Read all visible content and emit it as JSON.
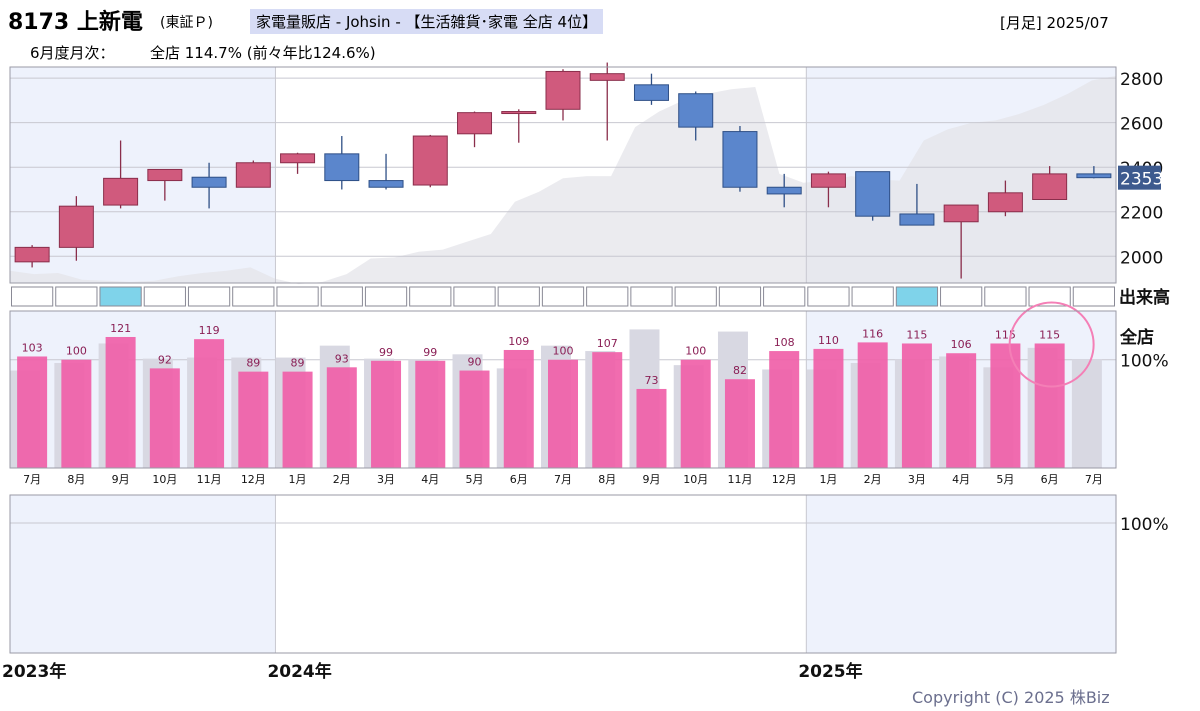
{
  "header": {
    "ticker": "8173 上新電",
    "market": "(東証Ｐ)",
    "sector": "家電量販店 - Johsin - 【生活雑貨･家電 全店 4位】",
    "period": "[月足] 2025/07",
    "monthly_label": "6月度月次：",
    "monthly_value": "全店 114.7% (前々年比124.6%)"
  },
  "copyright": "Copyright (C) 2025 株Biz",
  "colors": {
    "up": "#d05a7d",
    "down": "#5b86cc",
    "sales_bar": "#f060a8",
    "prev_bar": "#d8d8e2",
    "shade": "#eef2fc",
    "price_tag": "#3d5a8e"
  },
  "chart_data": [
    {
      "type": "candlestick",
      "ylim": [
        1880,
        2850
      ],
      "yticks": [
        "2800",
        "2600",
        "2400",
        "2200",
        "2000"
      ],
      "last_price": "2353",
      "volume_label": "出来高",
      "years": [
        "2023年",
        "2024年",
        "2025年"
      ],
      "categories": [
        "7月",
        "8月",
        "9月",
        "10月",
        "11月",
        "12月",
        "1月",
        "2月",
        "3月",
        "4月",
        "5月",
        "6月",
        "7月",
        "8月",
        "9月",
        "10月",
        "11月",
        "12月",
        "1月",
        "2月",
        "3月",
        "4月",
        "5月",
        "6月",
        "7月"
      ],
      "ohlc": [
        [
          1975,
          2050,
          1950,
          2040
        ],
        [
          2040,
          2270,
          1980,
          2225
        ],
        [
          2230,
          2520,
          2215,
          2350
        ],
        [
          2340,
          2390,
          2250,
          2390
        ],
        [
          2355,
          2420,
          2215,
          2310
        ],
        [
          2310,
          2430,
          2310,
          2420
        ],
        [
          2420,
          2465,
          2370,
          2460
        ],
        [
          2460,
          2540,
          2300,
          2340
        ],
        [
          2340,
          2460,
          2300,
          2310
        ],
        [
          2320,
          2545,
          2310,
          2540
        ],
        [
          2550,
          2650,
          2490,
          2645
        ],
        [
          2645,
          2660,
          2510,
          2650
        ],
        [
          2660,
          2840,
          2610,
          2830
        ],
        [
          2790,
          2870,
          2520,
          2820
        ],
        [
          2770,
          2820,
          2680,
          2700
        ],
        [
          2730,
          2740,
          2520,
          2580
        ],
        [
          2560,
          2585,
          2290,
          2310
        ],
        [
          2310,
          2370,
          2220,
          2280
        ],
        [
          2310,
          2380,
          2220,
          2370
        ],
        [
          2380,
          2380,
          2160,
          2180
        ],
        [
          2190,
          2325,
          2140,
          2140
        ],
        [
          2155,
          2230,
          1900,
          2230
        ],
        [
          2200,
          2340,
          2180,
          2285
        ],
        [
          2255,
          2405,
          2255,
          2370
        ],
        [
          2370,
          2405,
          2350,
          2353
        ]
      ],
      "shadow_area": [
        1935,
        1920,
        1925,
        1895,
        1890,
        1885,
        1890,
        1910,
        1925,
        1935,
        1950,
        1900,
        1875,
        1885,
        1920,
        1990,
        1995,
        2020,
        2030,
        2065,
        2100,
        2245,
        2290,
        2350,
        2360,
        2360,
        2580,
        2650,
        2700,
        2730,
        2750,
        2760,
        2370,
        2330,
        2340,
        2360,
        2345,
        2340,
        2520,
        2570,
        2600,
        2610,
        2640,
        2680,
        2730,
        2790,
        2810
      ],
      "volume_highlight": [
        false,
        false,
        true,
        false,
        false,
        false,
        false,
        false,
        false,
        false,
        false,
        false,
        false,
        false,
        false,
        false,
        false,
        false,
        false,
        false,
        true,
        false,
        false,
        false,
        false
      ]
    },
    {
      "type": "bar",
      "title": "全店",
      "reference_label": "100%",
      "ylim": [
        0,
        145
      ],
      "categories": [
        "7月",
        "8月",
        "9月",
        "10月",
        "11月",
        "12月",
        "1月",
        "2月",
        "3月",
        "4月",
        "5月",
        "6月",
        "7月",
        "8月",
        "9月",
        "10月",
        "11月",
        "12月",
        "1月",
        "2月",
        "3月",
        "4月",
        "5月",
        "6月",
        "7月"
      ],
      "values": [
        103,
        100,
        121,
        92,
        119,
        89,
        89,
        93,
        99,
        99,
        90,
        109,
        100,
        107,
        73,
        100,
        82,
        108,
        110,
        116,
        115,
        106,
        115,
        115,
        null
      ],
      "prev_year_values": [
        90,
        97,
        115,
        101,
        102,
        102,
        102,
        113,
        101,
        100,
        105,
        92,
        113,
        108,
        128,
        95,
        126,
        91,
        91,
        97,
        100,
        103,
        93,
        111,
        100
      ]
    },
    {
      "type": "bar",
      "reference_label": "100%",
      "values": []
    }
  ]
}
